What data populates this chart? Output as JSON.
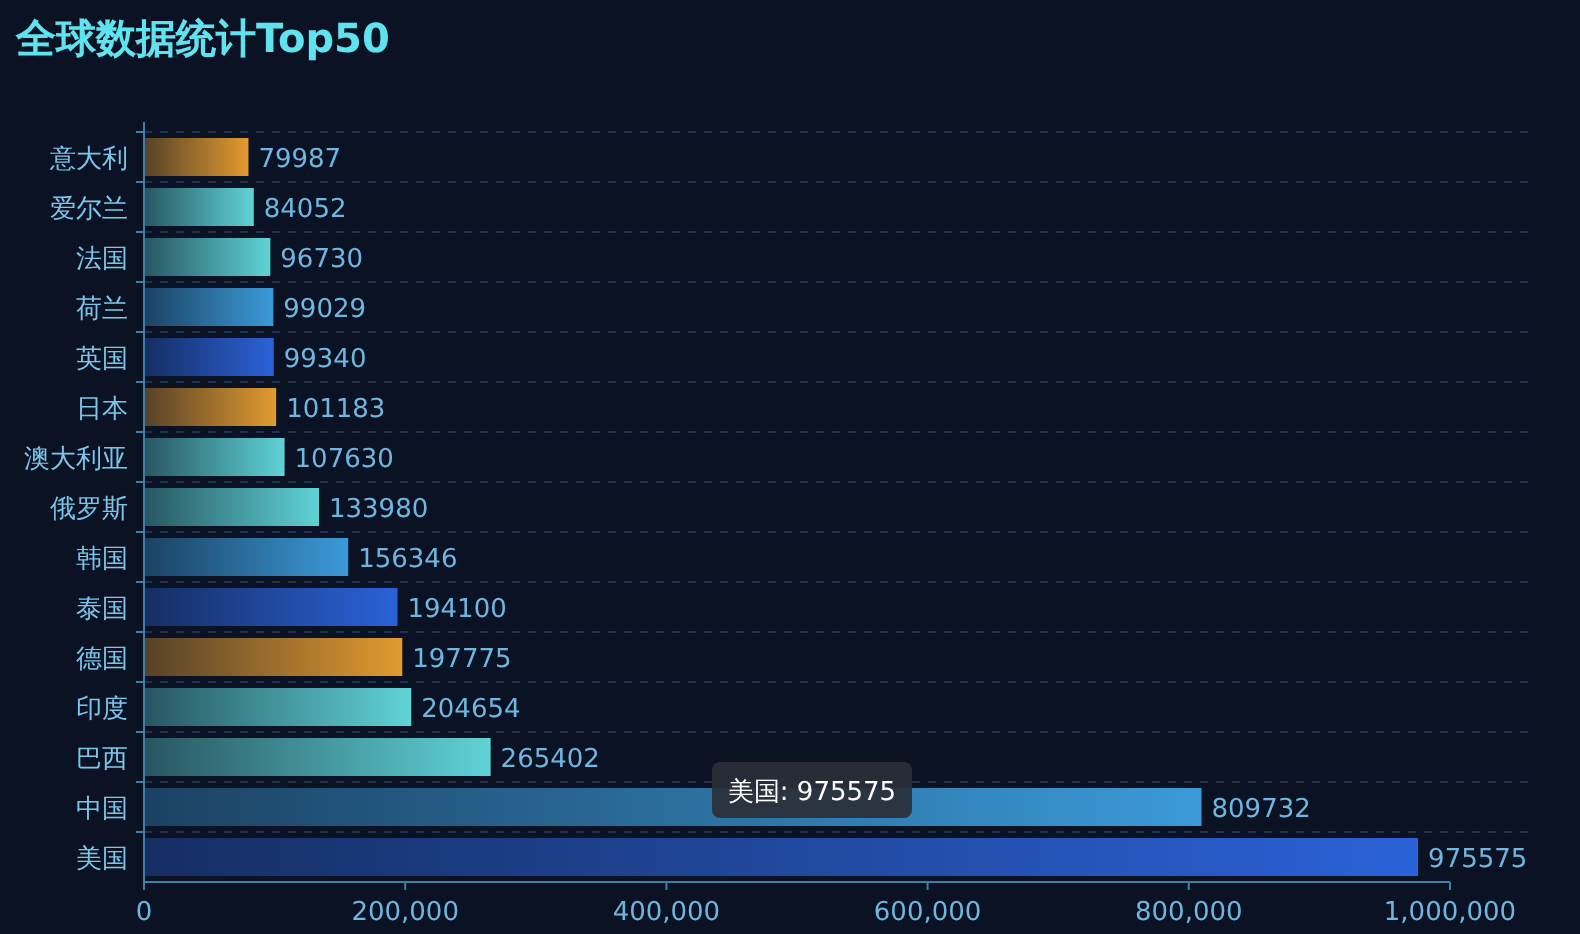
{
  "chart_data": {
    "type": "bar",
    "orientation": "horizontal",
    "title": "全球数据统计Top50",
    "categories": [
      "意大利",
      "爱尔兰",
      "法国",
      "荷兰",
      "英国",
      "日本",
      "澳大利亚",
      "俄罗斯",
      "韩国",
      "泰国",
      "德国",
      "印度",
      "巴西",
      "中国",
      "美国"
    ],
    "values": [
      79987,
      84052,
      96730,
      99029,
      99340,
      101183,
      107630,
      133980,
      156346,
      194100,
      197775,
      204654,
      265402,
      809732,
      975575
    ],
    "colors": [
      "#e29a30",
      "#5fd3d6",
      "#5fd3d6",
      "#3b9ad8",
      "#2b62d8",
      "#e29a30",
      "#5fd3d6",
      "#5fd3d6",
      "#3b9ad8",
      "#2b62d8",
      "#e29a30",
      "#5fd3d6",
      "#5fd3d6",
      "#3b9ad8",
      "#2b62d8"
    ],
    "xlim": [
      0,
      1000000
    ],
    "xticks": [
      0,
      {
        "value": 200000,
        "label": "200,000"
      },
      {
        "value": 400000,
        "label": "400,000"
      },
      {
        "value": 600000,
        "label": "600,000"
      },
      {
        "value": 800000,
        "label": "800,000"
      },
      {
        "value": 1000000,
        "label": "1,000,000"
      }
    ],
    "grid": "y",
    "data_labels": true,
    "annotations": [
      "美国: 975575"
    ]
  }
}
